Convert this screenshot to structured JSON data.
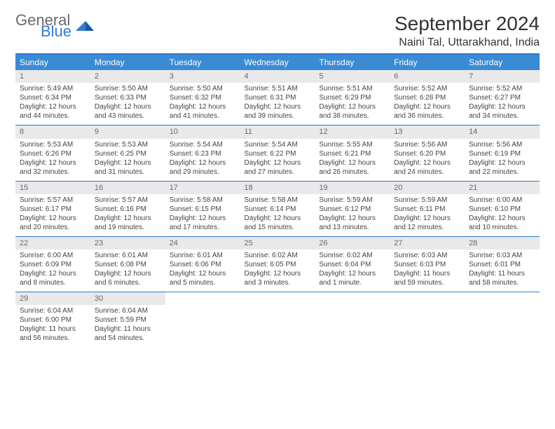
{
  "brand": {
    "text1": "General",
    "text2": "Blue",
    "color1": "#6a6a6a",
    "color2": "#2e7cd1"
  },
  "title": "September 2024",
  "location": "Naini Tal, Uttarakhand, India",
  "header_bg": "#3b8bd4",
  "divider_color": "#2e7cd1",
  "daynum_bg": "#e9e9e9",
  "weekdays": [
    "Sunday",
    "Monday",
    "Tuesday",
    "Wednesday",
    "Thursday",
    "Friday",
    "Saturday"
  ],
  "weeks": [
    [
      {
        "n": "1",
        "sr": "Sunrise: 5:49 AM",
        "ss": "Sunset: 6:34 PM",
        "d1": "Daylight: 12 hours",
        "d2": "and 44 minutes."
      },
      {
        "n": "2",
        "sr": "Sunrise: 5:50 AM",
        "ss": "Sunset: 6:33 PM",
        "d1": "Daylight: 12 hours",
        "d2": "and 43 minutes."
      },
      {
        "n": "3",
        "sr": "Sunrise: 5:50 AM",
        "ss": "Sunset: 6:32 PM",
        "d1": "Daylight: 12 hours",
        "d2": "and 41 minutes."
      },
      {
        "n": "4",
        "sr": "Sunrise: 5:51 AM",
        "ss": "Sunset: 6:31 PM",
        "d1": "Daylight: 12 hours",
        "d2": "and 39 minutes."
      },
      {
        "n": "5",
        "sr": "Sunrise: 5:51 AM",
        "ss": "Sunset: 6:29 PM",
        "d1": "Daylight: 12 hours",
        "d2": "and 38 minutes."
      },
      {
        "n": "6",
        "sr": "Sunrise: 5:52 AM",
        "ss": "Sunset: 6:28 PM",
        "d1": "Daylight: 12 hours",
        "d2": "and 36 minutes."
      },
      {
        "n": "7",
        "sr": "Sunrise: 5:52 AM",
        "ss": "Sunset: 6:27 PM",
        "d1": "Daylight: 12 hours",
        "d2": "and 34 minutes."
      }
    ],
    [
      {
        "n": "8",
        "sr": "Sunrise: 5:53 AM",
        "ss": "Sunset: 6:26 PM",
        "d1": "Daylight: 12 hours",
        "d2": "and 32 minutes."
      },
      {
        "n": "9",
        "sr": "Sunrise: 5:53 AM",
        "ss": "Sunset: 6:25 PM",
        "d1": "Daylight: 12 hours",
        "d2": "and 31 minutes."
      },
      {
        "n": "10",
        "sr": "Sunrise: 5:54 AM",
        "ss": "Sunset: 6:23 PM",
        "d1": "Daylight: 12 hours",
        "d2": "and 29 minutes."
      },
      {
        "n": "11",
        "sr": "Sunrise: 5:54 AM",
        "ss": "Sunset: 6:22 PM",
        "d1": "Daylight: 12 hours",
        "d2": "and 27 minutes."
      },
      {
        "n": "12",
        "sr": "Sunrise: 5:55 AM",
        "ss": "Sunset: 6:21 PM",
        "d1": "Daylight: 12 hours",
        "d2": "and 26 minutes."
      },
      {
        "n": "13",
        "sr": "Sunrise: 5:56 AM",
        "ss": "Sunset: 6:20 PM",
        "d1": "Daylight: 12 hours",
        "d2": "and 24 minutes."
      },
      {
        "n": "14",
        "sr": "Sunrise: 5:56 AM",
        "ss": "Sunset: 6:19 PM",
        "d1": "Daylight: 12 hours",
        "d2": "and 22 minutes."
      }
    ],
    [
      {
        "n": "15",
        "sr": "Sunrise: 5:57 AM",
        "ss": "Sunset: 6:17 PM",
        "d1": "Daylight: 12 hours",
        "d2": "and 20 minutes."
      },
      {
        "n": "16",
        "sr": "Sunrise: 5:57 AM",
        "ss": "Sunset: 6:16 PM",
        "d1": "Daylight: 12 hours",
        "d2": "and 19 minutes."
      },
      {
        "n": "17",
        "sr": "Sunrise: 5:58 AM",
        "ss": "Sunset: 6:15 PM",
        "d1": "Daylight: 12 hours",
        "d2": "and 17 minutes."
      },
      {
        "n": "18",
        "sr": "Sunrise: 5:58 AM",
        "ss": "Sunset: 6:14 PM",
        "d1": "Daylight: 12 hours",
        "d2": "and 15 minutes."
      },
      {
        "n": "19",
        "sr": "Sunrise: 5:59 AM",
        "ss": "Sunset: 6:12 PM",
        "d1": "Daylight: 12 hours",
        "d2": "and 13 minutes."
      },
      {
        "n": "20",
        "sr": "Sunrise: 5:59 AM",
        "ss": "Sunset: 6:11 PM",
        "d1": "Daylight: 12 hours",
        "d2": "and 12 minutes."
      },
      {
        "n": "21",
        "sr": "Sunrise: 6:00 AM",
        "ss": "Sunset: 6:10 PM",
        "d1": "Daylight: 12 hours",
        "d2": "and 10 minutes."
      }
    ],
    [
      {
        "n": "22",
        "sr": "Sunrise: 6:00 AM",
        "ss": "Sunset: 6:09 PM",
        "d1": "Daylight: 12 hours",
        "d2": "and 8 minutes."
      },
      {
        "n": "23",
        "sr": "Sunrise: 6:01 AM",
        "ss": "Sunset: 6:08 PM",
        "d1": "Daylight: 12 hours",
        "d2": "and 6 minutes."
      },
      {
        "n": "24",
        "sr": "Sunrise: 6:01 AM",
        "ss": "Sunset: 6:06 PM",
        "d1": "Daylight: 12 hours",
        "d2": "and 5 minutes."
      },
      {
        "n": "25",
        "sr": "Sunrise: 6:02 AM",
        "ss": "Sunset: 6:05 PM",
        "d1": "Daylight: 12 hours",
        "d2": "and 3 minutes."
      },
      {
        "n": "26",
        "sr": "Sunrise: 6:02 AM",
        "ss": "Sunset: 6:04 PM",
        "d1": "Daylight: 12 hours",
        "d2": "and 1 minute."
      },
      {
        "n": "27",
        "sr": "Sunrise: 6:03 AM",
        "ss": "Sunset: 6:03 PM",
        "d1": "Daylight: 11 hours",
        "d2": "and 59 minutes."
      },
      {
        "n": "28",
        "sr": "Sunrise: 6:03 AM",
        "ss": "Sunset: 6:01 PM",
        "d1": "Daylight: 11 hours",
        "d2": "and 58 minutes."
      }
    ],
    [
      {
        "n": "29",
        "sr": "Sunrise: 6:04 AM",
        "ss": "Sunset: 6:00 PM",
        "d1": "Daylight: 11 hours",
        "d2": "and 56 minutes."
      },
      {
        "n": "30",
        "sr": "Sunrise: 6:04 AM",
        "ss": "Sunset: 5:59 PM",
        "d1": "Daylight: 11 hours",
        "d2": "and 54 minutes."
      },
      null,
      null,
      null,
      null,
      null
    ]
  ]
}
